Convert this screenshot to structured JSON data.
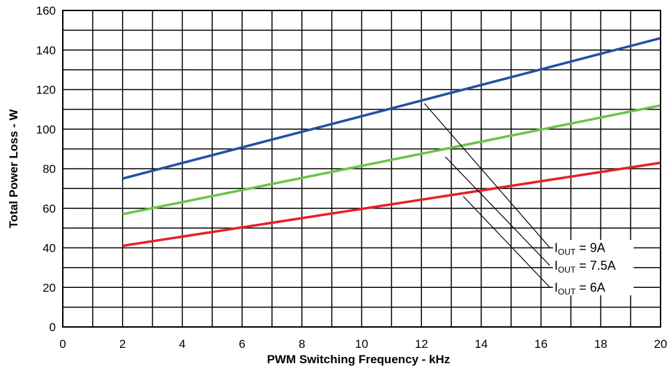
{
  "chart_data": {
    "type": "line",
    "xlabel": "PWM Switching Frequency - kHz",
    "ylabel": "Total Power Loss - W",
    "xlim": [
      0,
      20
    ],
    "ylim": [
      0,
      160
    ],
    "x_ticks": [
      "0",
      "2",
      "4",
      "6",
      "8",
      "10",
      "12",
      "14",
      "16",
      "18",
      "20"
    ],
    "y_ticks": [
      "0",
      "20",
      "40",
      "60",
      "80",
      "100",
      "120",
      "140",
      "160"
    ],
    "grid": true,
    "series": [
      {
        "name": "IOUT = 9A",
        "color": "#2550a0",
        "x": [
          2,
          20
        ],
        "y": [
          75,
          146
        ]
      },
      {
        "name": "IOUT = 7.5A",
        "color": "#6cc24a",
        "x": [
          2,
          20
        ],
        "y": [
          57,
          112
        ]
      },
      {
        "name": "IOUT = 6A",
        "color": "#e32228",
        "x": [
          2,
          20
        ],
        "y": [
          41,
          83
        ]
      }
    ],
    "annotations": [
      {
        "prefix": "I",
        "sub": "OUT",
        "suffix": " = 9A"
      },
      {
        "prefix": "I",
        "sub": "OUT",
        "suffix": " = 7.5A"
      },
      {
        "prefix": "I",
        "sub": "OUT",
        "suffix": " = 6A"
      }
    ]
  }
}
